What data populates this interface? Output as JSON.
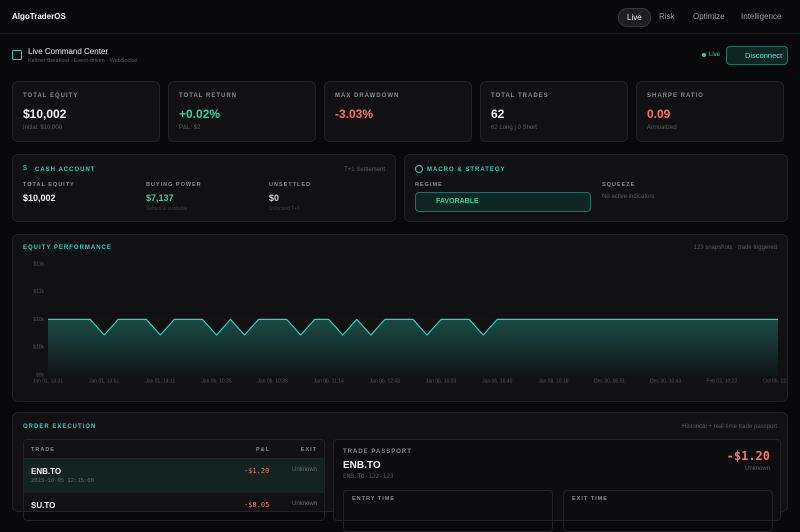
{
  "nav": {
    "brand": "AlgoTraderOS",
    "tabs": [
      "Live",
      "Risk",
      "Optimize",
      "Intelligence"
    ],
    "active_tab": 0
  },
  "header": {
    "title": "Live Command Center",
    "subtitle": "Keltner Breakout · Event-driven · WebSocket",
    "status": "Live",
    "button": "Disconnect"
  },
  "stats": [
    {
      "label": "TOTAL EQUITY",
      "value": "$10,002",
      "sub": "Initial: $10,000",
      "color": "#f5f5f5"
    },
    {
      "label": "TOTAL RETURN",
      "value": "+0.02%",
      "sub": "P&L: $2",
      "color": "#34d399"
    },
    {
      "label": "MAX DRAWDOWN",
      "value": "-3.03%",
      "sub": null,
      "color": "#f87171"
    },
    {
      "label": "TOTAL TRADES",
      "value": "62",
      "sub": "62 Long | 0 Short",
      "color": "#f5f5f5"
    },
    {
      "label": "SHARPE RATIO",
      "value": "0.09",
      "sub": "Annualized",
      "color": "#f87171"
    }
  ],
  "cash_account": {
    "title": "CASH ACCOUNT",
    "note": "T+1 Settlement",
    "columns": [
      {
        "label": "TOTAL EQUITY",
        "value": "$10,002",
        "sub": null,
        "color": "#f5f5f5"
      },
      {
        "label": "BUYING POWER",
        "value": "$7,137",
        "sub": "Settled & available",
        "color": "#34d399"
      },
      {
        "label": "UNSETTLED",
        "value": "$0",
        "sub": "Unlocked T+1",
        "color": "#d4d4d4"
      }
    ]
  },
  "macro": {
    "title": "MACRO & STRATEGY",
    "regime_label": "REGIME",
    "regime": "FAVORABLE",
    "squeeze_label": "SQUEEZE",
    "squeeze": "No active indicators"
  },
  "chart_data": {
    "type": "line",
    "title": "EQUITY PERFORMANCE",
    "subtitle": "123 snapshots · trade triggered",
    "color": "#2dd4bf",
    "categories": [
      "Jan 01, 13:31",
      null,
      null,
      null,
      "Jan 01, 13:51",
      null,
      null,
      null,
      "Jan 01, 14:11",
      null,
      null,
      null,
      "Jan 06, 10:35",
      null,
      null,
      null,
      "Jan 06, 10:36",
      null,
      null,
      null,
      "Jan 06, 11:14",
      null,
      null,
      null,
      "Jan 06, 12:43",
      null,
      null,
      null,
      "Jan 06, 16:03",
      null,
      null,
      null,
      "Jan 06, 16:40",
      null,
      null,
      null,
      "Jan 08, 10:18",
      null,
      null,
      null,
      "Dec 30, 06:51",
      null,
      null,
      null,
      "Dec 30, 10:43",
      null,
      null,
      null,
      "Feb 02, 10:22",
      null,
      null,
      null,
      "Oct 05, 12:18"
    ],
    "values": [
      10002,
      10002,
      10002,
      10002,
      9720,
      10002,
      10002,
      10002,
      9720,
      10002,
      10002,
      10002,
      9720,
      10002,
      9720,
      10002,
      10002,
      10002,
      9720,
      10002,
      10002,
      9720,
      10002,
      9720,
      10002,
      10002,
      10002,
      9720,
      10002,
      10002,
      10002,
      9720,
      10002,
      10002,
      10002,
      10002,
      10002,
      10002,
      10002,
      10002,
      10002,
      10002,
      10002,
      10002,
      10002,
      10002,
      10002,
      10002,
      10002,
      10002,
      10002,
      10002,
      10002
    ],
    "ylim": [
      9000,
      11000
    ],
    "yticks": [
      {
        "value": 9000,
        "label": "$9k"
      },
      {
        "value": 9500,
        "label": "$10k"
      },
      {
        "value": 10000,
        "label": "$10k"
      },
      {
        "value": 10500,
        "label": "$11k"
      },
      {
        "value": 11000,
        "label": "$11k"
      }
    ],
    "grid": true
  },
  "orders": {
    "title": "ORDER EXECUTION",
    "note": "Historical + real-time trade passport",
    "headers": [
      "TRADE",
      "P&L",
      "EXIT"
    ],
    "rows": [
      {
        "symbol": "ENB.TO",
        "time": "2023-10-05 12:15:00",
        "pnl": "-$1.20",
        "exit": "Unknown"
      },
      {
        "symbol": "SU.TO",
        "time": null,
        "pnl": "-$0.05",
        "exit": "Unknown"
      }
    ],
    "passport": {
      "title": "TRADE PASSPORT",
      "symbol": "ENB.TO",
      "id": "ENB.TO-122-123",
      "pnl": "-$1.20",
      "exit": "Unknown",
      "fields": [
        "ENTRY TIME",
        "EXIT TIME"
      ]
    }
  }
}
